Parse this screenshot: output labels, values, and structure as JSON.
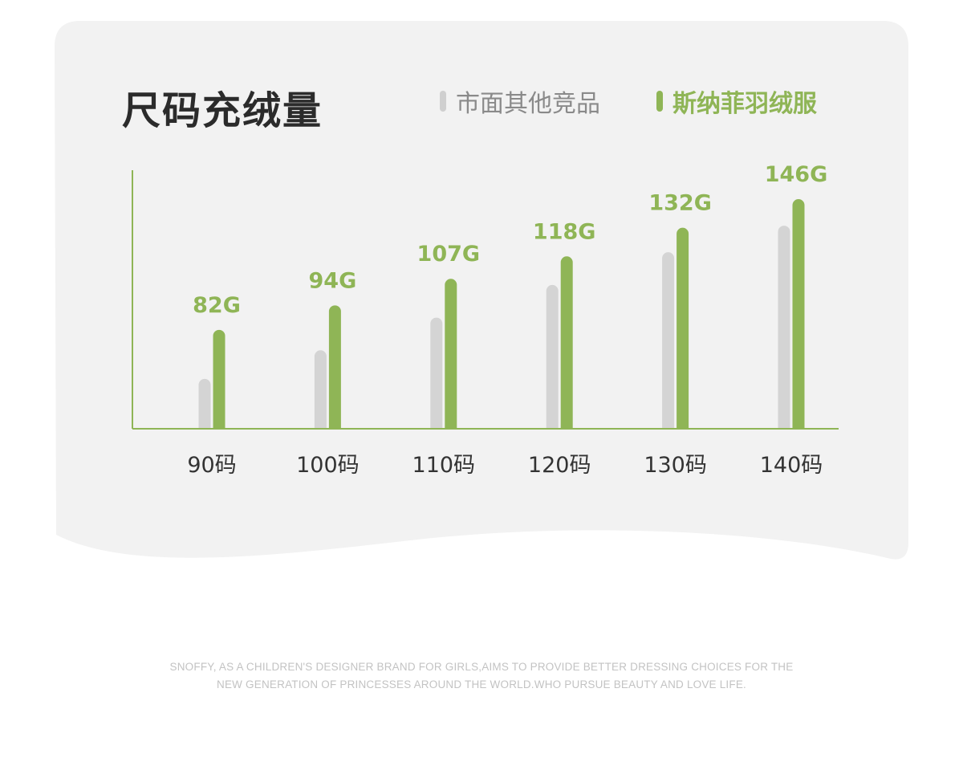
{
  "colors": {
    "card_bg": "#f2f2f2",
    "accent": "#8fb556",
    "other": "#d4d4d4",
    "title": "#2b2b2b",
    "axis_label": "#333333",
    "footer": "#c3c3c3"
  },
  "legend": {
    "other_label": "市面其他竞品",
    "brand_label": "斯纳菲羽绒服"
  },
  "chart_data": {
    "type": "bar",
    "title": "尺码充绒量",
    "categories": [
      "90码",
      "100码",
      "110码",
      "120码",
      "130码",
      "140码"
    ],
    "series": [
      {
        "name": "市面其他竞品",
        "values": [
          58,
          72,
          88,
          104,
          120,
          133
        ]
      },
      {
        "name": "斯纳菲羽绒服",
        "values": [
          82,
          94,
          107,
          118,
          132,
          146
        ]
      }
    ],
    "data_labels": [
      "82G",
      "94G",
      "107G",
      "118G",
      "132G",
      "146G"
    ],
    "ylim": [
      34,
      146
    ],
    "grid": false,
    "legend_position": "top-right"
  },
  "footer": {
    "line1": "SNOFFY, AS A CHILDREN'S DESIGNER BRAND FOR GIRLS,AIMS TO PROVIDE BETTER DRESSING CHOICES FOR THE",
    "line2": "NEW GENERATION OF PRINCESSES AROUND THE WORLD.WHO PURSUE BEAUTY AND LOVE LIFE."
  }
}
